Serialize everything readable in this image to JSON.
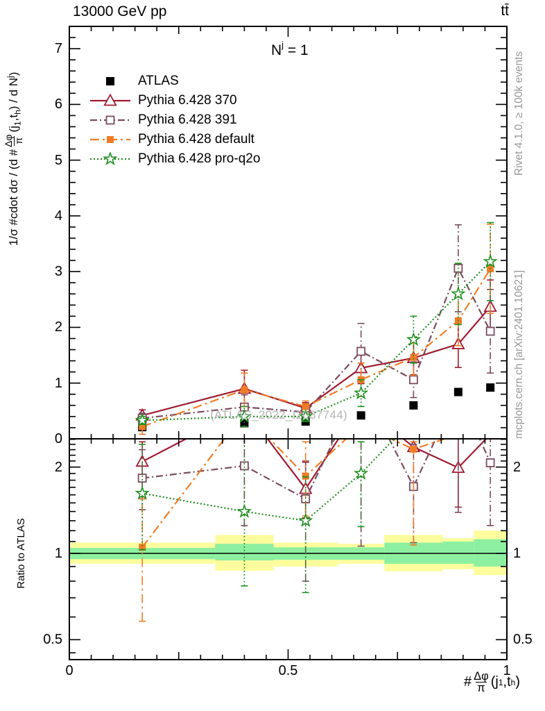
{
  "titles": {
    "top_left": "13000 GeV pp",
    "top_right": "tt̄"
  },
  "annotation": {
    "base": "N",
    "sup": "j",
    "rest": " = 1"
  },
  "watermark": "(ATLAS_2022_I2037744)",
  "side_notes": {
    "top": "Rivet 4.1.0, ≥ 100k events",
    "bottom": "mcplots.cern.ch [arXiv:2401.10621]"
  },
  "colors": {
    "atlas": "#000000",
    "p370": "#9e1b32",
    "p391": "#7a4b5f",
    "pdefault": "#f07d26",
    "pq2o": "#1e8f1e",
    "band_yellow": "#fdfd9e",
    "band_green": "#8df0a0",
    "frame": "#000000",
    "gray_text": "#979797",
    "watermark_text": "#b4b4b4"
  },
  "series_defs": [
    {
      "key": "atlas",
      "label": "ATLAS",
      "color": "#000000",
      "marker": "square-filled",
      "dash": "none"
    },
    {
      "key": "p370",
      "label": "Pythia 6.428 370",
      "color": "#9e1b32",
      "marker": "triangle-open",
      "dash": "solid"
    },
    {
      "key": "p391",
      "label": "Pythia 6.428 391",
      "color": "#7a4b5f",
      "marker": "square-open",
      "dash": "dashdot"
    },
    {
      "key": "pdefault",
      "label": "Pythia 6.428 default",
      "color": "#f07d26",
      "marker": "square-filled-small",
      "dash": "longdashdot"
    },
    {
      "key": "pq2o",
      "label": "Pythia 6.428 pro-q2o",
      "color": "#1e8f1e",
      "marker": "star-open",
      "dash": "dotted"
    }
  ],
  "axes": {
    "x": {
      "range": [
        0,
        1
      ],
      "major_ticks": [
        0,
        0.5,
        1
      ],
      "major_labels": [
        "0",
        "0.5",
        "1"
      ],
      "minor_step": 0.05,
      "label": {
        "prefix": "#",
        "num": "Δφ",
        "den": "π",
        "post1": "(j",
        "sub1": "1",
        "post2": ",t",
        "sub2": "h",
        "post3": ")"
      }
    },
    "y_main": {
      "range": [
        0,
        7.4
      ],
      "major_ticks": [
        0,
        1,
        2,
        3,
        4,
        5,
        6,
        7
      ],
      "major_labels": [
        "0",
        "1",
        "2",
        "3",
        "4",
        "5",
        "6",
        "7"
      ],
      "minor_step": 0.2,
      "label": {
        "pre": "1/σ #cdot dσ / (d #",
        "num": "Δφ",
        "den": "π",
        "post1": "(j",
        "sub1": "1",
        "post2": ",t",
        "sub2": "h",
        "post3": ") / d N",
        "sup": "j",
        "post4": ")"
      }
    },
    "y_ratio": {
      "label": "Ratio to ATLAS",
      "scale": "log",
      "range": [
        0.425,
        2.515
      ],
      "major_ticks": [
        2,
        1,
        0.5
      ],
      "major_labels": [
        "2",
        "1",
        "0.5"
      ],
      "minor_ticks": [
        0.45,
        0.6,
        0.7,
        0.8,
        0.9,
        1.1,
        1.2,
        1.3,
        1.4,
        1.5,
        1.6,
        1.7,
        1.8,
        1.9,
        2.1,
        2.2,
        2.3,
        2.4,
        2.5
      ]
    }
  },
  "chart_data": {
    "type": "line",
    "title": "13000 GeV pp, tt̄, N^j = 1",
    "xlabel": "#Δφ/π(j1,th)",
    "x_values": [
      0.1667,
      0.4,
      0.54,
      0.6667,
      0.7867,
      0.8889,
      0.9622
    ],
    "bin_edges": [
      0,
      0.3333,
      0.4667,
      0.6133,
      0.72,
      0.8533,
      0.9244,
      1.0
    ],
    "main_panel": {
      "ylabel": "1/σ #cdot dσ / (d #Δφ/π(j1,th) / d N^j)",
      "ylim": [
        0,
        7.4
      ],
      "series": {
        "atlas": {
          "values": [
            0.21,
            0.28,
            0.31,
            0.42,
            0.6,
            0.84,
            0.92
          ],
          "yerr": [
            0,
            0,
            0,
            0,
            0,
            0,
            0
          ]
        },
        "p370": {
          "values": [
            0.42,
            0.9,
            0.55,
            1.27,
            1.45,
            1.7,
            2.37
          ],
          "yerr": [
            0.1,
            0.33,
            0.1,
            0.28,
            0.3,
            0.42,
            0.48
          ]
        },
        "p391": {
          "values": [
            0.37,
            0.57,
            0.48,
            1.57,
            1.06,
            3.06,
            1.93
          ],
          "yerr": [
            0.09,
            0.22,
            0.11,
            0.5,
            0.32,
            0.78,
            0.75
          ]
        },
        "pdefault": {
          "values": [
            0.22,
            0.88,
            0.58,
            1.06,
            1.46,
            2.12,
            3.05
          ],
          "yerr": [
            0.14,
            0.3,
            0.1,
            0.3,
            0.32,
            0.45,
            0.8
          ]
        },
        "pq2o": {
          "values": [
            0.33,
            0.4,
            0.4,
            0.82,
            1.78,
            2.6,
            3.18
          ],
          "yerr": [
            0.07,
            0.18,
            0.09,
            0.24,
            0.42,
            0.55,
            0.7
          ]
        }
      }
    },
    "ratio_panel": {
      "ylabel": "Ratio to ATLAS",
      "scale": "log",
      "ylim": [
        0.425,
        2.515
      ],
      "reference_line": 1,
      "bands": {
        "yellow": [
          [
            0.92,
            1.09
          ],
          [
            0.87,
            1.16
          ],
          [
            0.9,
            1.09
          ],
          [
            0.92,
            1.08
          ],
          [
            0.865,
            1.16
          ],
          [
            0.88,
            1.13
          ],
          [
            0.84,
            1.2
          ]
        ],
        "green": [
          [
            0.955,
            1.045
          ],
          [
            0.945,
            1.08
          ],
          [
            0.95,
            1.05
          ],
          [
            0.95,
            1.05
          ],
          [
            0.92,
            1.09
          ],
          [
            0.92,
            1.1
          ],
          [
            0.9,
            1.12
          ]
        ]
      },
      "series": {
        "p370": {
          "markers": [
            2.09,
            null,
            1.68,
            null,
            2.35,
            1.99,
            null
          ],
          "line": [
            2.09,
            3.2,
            1.68,
            3.3,
            2.35,
            1.99,
            2.6
          ],
          "err_segments": [
            [
              0,
              1.55,
              2.45
            ],
            [
              2,
              1.33,
              2.08
            ],
            [
              5,
              1.45,
              2.6
            ]
          ]
        },
        "p391": {
          "markers": [
            1.83,
            2.02,
            1.55,
            null,
            1.71,
            null,
            2.07
          ],
          "line": [
            1.83,
            2.02,
            1.55,
            3.9,
            1.71,
            3.7,
            2.07
          ],
          "err_segments": [
            [
              0,
              1.42,
              2.3
            ],
            [
              1,
              1.25,
              2.6
            ],
            [
              2,
              0.8,
              2.1
            ],
            [
              3,
              1.06,
              2.6
            ],
            [
              4,
              1.09,
              2.4
            ],
            [
              5,
              1.39,
              2.6
            ],
            [
              6,
              1.25,
              2.6
            ]
          ]
        },
        "pdefault": {
          "markers": [
            1.05,
            null,
            1.86,
            null,
            2.31,
            null,
            null
          ],
          "line": [
            1.05,
            3.1,
            1.86,
            2.8,
            2.31,
            2.6,
            3.3
          ],
          "err_segments": [
            [
              0,
              0.58,
              1.55
            ],
            [
              2,
              1.35,
              2.45
            ],
            [
              4,
              1.07,
              2.45
            ]
          ]
        },
        "pq2o": {
          "markers": [
            1.62,
            1.4,
            1.3,
            1.9,
            null,
            null,
            null
          ],
          "line": [
            1.62,
            1.4,
            1.3,
            1.9,
            2.95,
            3.1,
            3.45
          ],
          "err_segments": [
            [
              0,
              1.03,
              2.4
            ],
            [
              1,
              0.77,
              2.6
            ],
            [
              2,
              0.73,
              1.85
            ],
            [
              3,
              1.24,
              2.45
            ]
          ]
        }
      }
    }
  }
}
